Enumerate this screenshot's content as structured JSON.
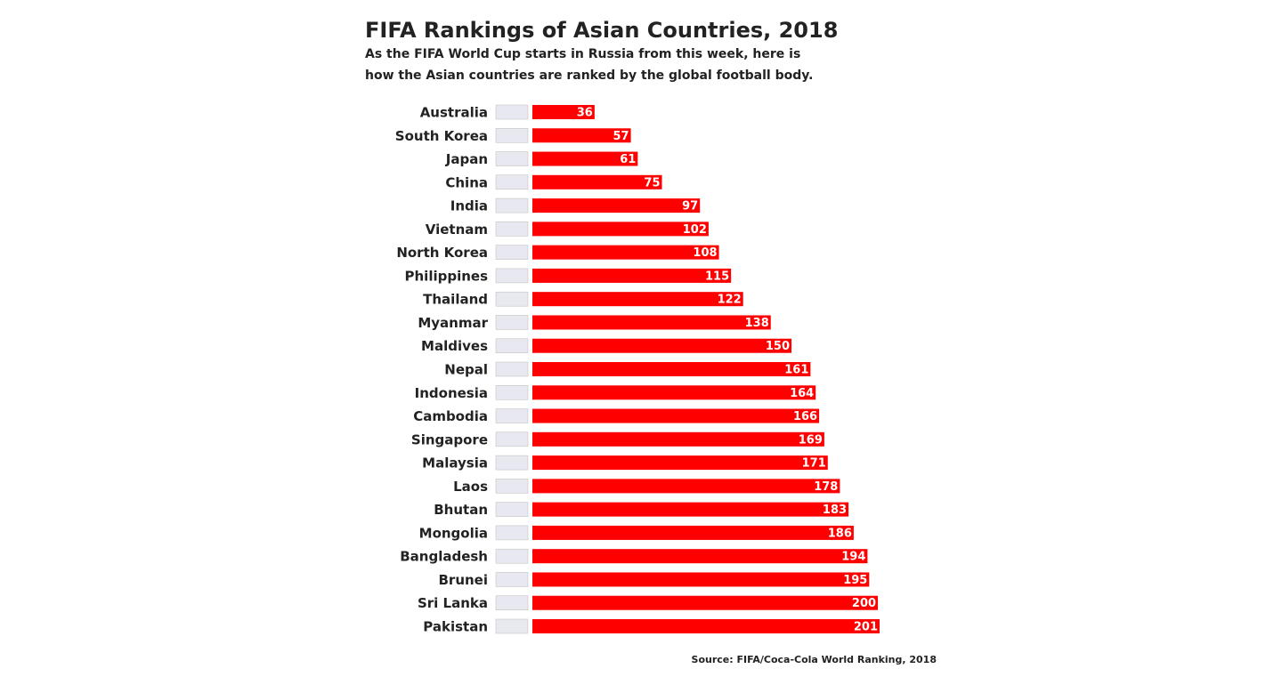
{
  "chart_data": {
    "type": "barh",
    "title": "FIFA Rankings of Asian Countries, 2018",
    "subtitle": [
      "As the FIFA World Cup starts in Russia from this week, here is",
      "how the Asian countries are ranked by the global football body."
    ],
    "source": "Source: FIFA/Coca-Cola World Ranking, 2018",
    "categories": [
      "Australia",
      "South Korea",
      "Japan",
      "China",
      "India",
      "Vietnam",
      "North Korea",
      "Philippines",
      "Thailand",
      "Myanmar",
      "Maldives",
      "Nepal",
      "Indonesia",
      "Cambodia",
      "Singapore",
      "Malaysia",
      "Laos",
      "Bhutan",
      "Mongolia",
      "Bangladesh",
      "Brunei",
      "Sri Lanka",
      "Pakistan"
    ],
    "values": [
      36,
      57,
      61,
      75,
      97,
      102,
      108,
      115,
      122,
      138,
      150,
      161,
      164,
      166,
      169,
      171,
      178,
      183,
      186,
      194,
      195,
      200,
      201
    ],
    "color": "#ff0000"
  }
}
